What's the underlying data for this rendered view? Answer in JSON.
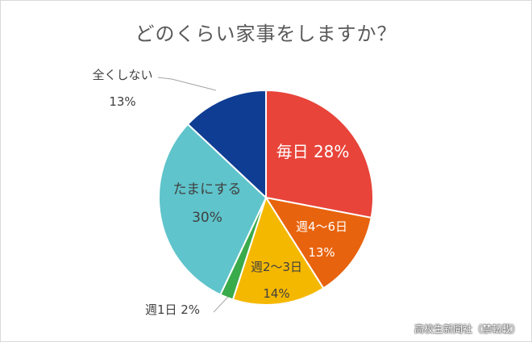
{
  "chart_data": {
    "type": "pie",
    "title": "どのくらい家事をしますか？",
    "slices": [
      {
        "name": "毎日",
        "value": 28,
        "label": "28%",
        "color": "#e8443a"
      },
      {
        "name": "週4～6日",
        "value": 13,
        "label": "13%",
        "color": "#e8630d"
      },
      {
        "name": "週2～3日",
        "value": 14,
        "label": "14%",
        "color": "#f5b800"
      },
      {
        "name": "週1日",
        "value": 2,
        "label": "2%",
        "color": "#3aab4a"
      },
      {
        "name": "たまにする",
        "value": 30,
        "label": "30%",
        "color": "#5fc4cb"
      },
      {
        "name": "全くしない",
        "value": 13,
        "label": "13%",
        "color": "#0e3d93"
      }
    ],
    "start_angle_deg": 0,
    "direction": "clockwise",
    "legend": "none"
  },
  "credit": "高校生新聞社（禁転載）"
}
